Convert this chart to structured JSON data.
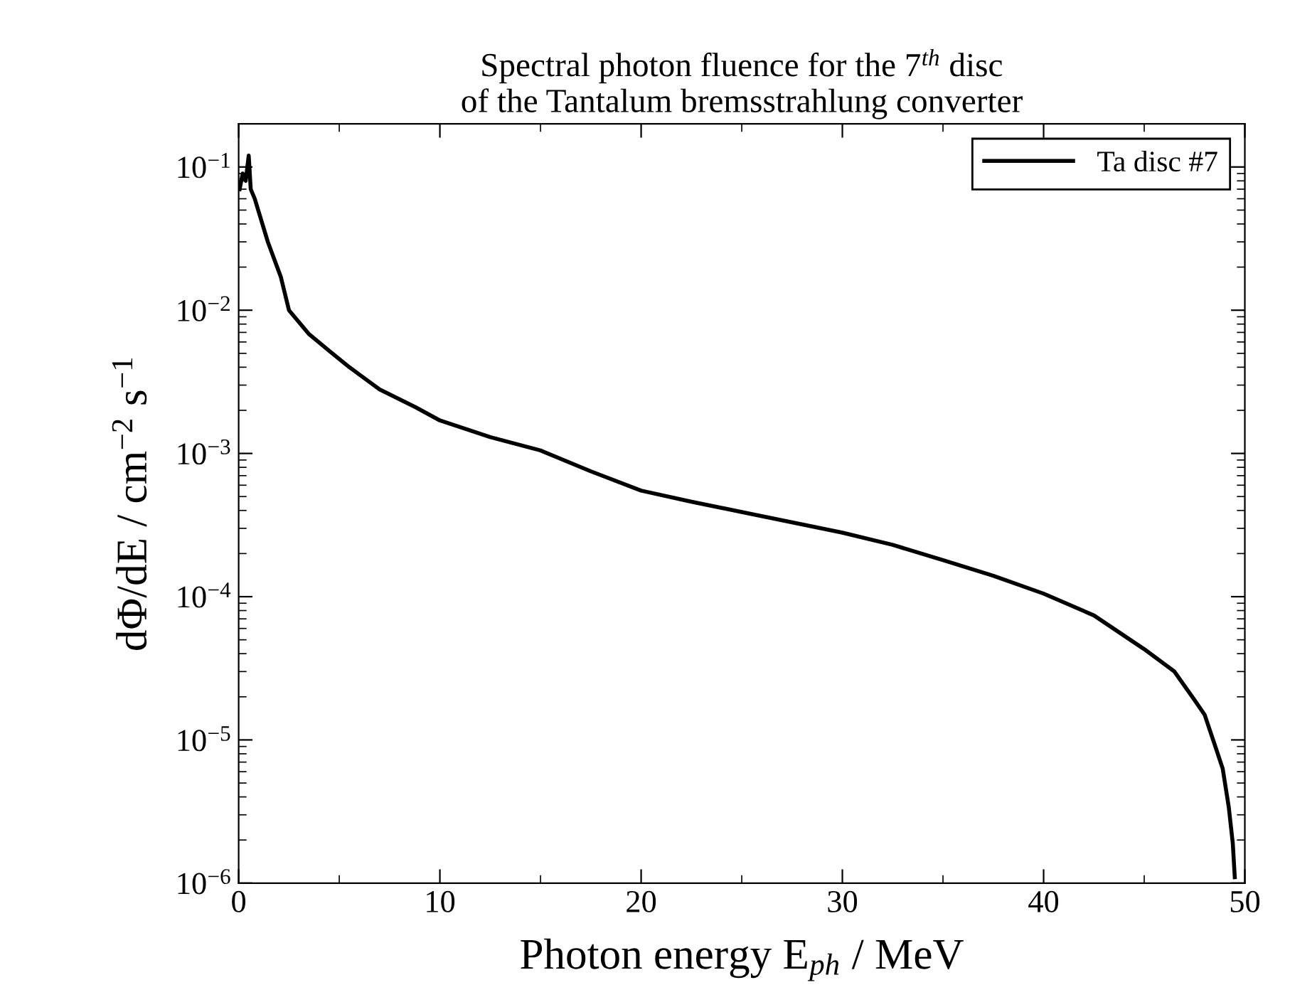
{
  "chart_data": {
    "type": "line",
    "title": "Spectral photon fluence for the 7$^{th}$ disc\nof the Tantalum bremsstrahlung converter",
    "xlabel": "Photon energy E$_{ph}$ / MeV",
    "ylabel": "dΦ/dE / cm$^{−2}$ s$^{−1}$",
    "series": [
      {
        "name": "Ta disc #7",
        "color": "#000000",
        "x": [
          0.05,
          0.2,
          0.35,
          0.5,
          0.6,
          0.8,
          1.45,
          2.1,
          2.5,
          3.5,
          4.5,
          5.5,
          7,
          8.8,
          10,
          12.5,
          15,
          17.5,
          20,
          22.5,
          25,
          27.5,
          30,
          32.5,
          35,
          37.5,
          40,
          42.5,
          45,
          46.5,
          47.5,
          48,
          48.5,
          48.9,
          49.2,
          49.4,
          49.5
        ],
        "values": [
          0.07,
          0.09,
          0.08,
          0.12,
          0.07,
          0.06,
          0.03,
          0.017,
          0.01,
          0.0068,
          0.0052,
          0.004,
          0.0028,
          0.0021,
          0.0017,
          0.0013,
          0.00105,
          0.00075,
          0.00055,
          0.00046,
          0.00039,
          0.00033,
          0.00028,
          0.00023,
          0.00018,
          0.00014,
          0.000105,
          7.4e-05,
          4.3e-05,
          3e-05,
          1.9e-05,
          1.5e-05,
          9.3e-06,
          6.3e-06,
          3.4e-06,
          1.9e-06,
          1.1e-06
        ]
      }
    ],
    "xlim": [
      0,
      50
    ],
    "xticks": [
      0,
      10,
      20,
      30,
      40,
      50
    ],
    "ylim": [
      1e-06,
      0.2
    ],
    "log": "y",
    "yticks": [
      {
        "value": 1e-06,
        "label": "10$^{−6}$"
      },
      {
        "value": 1e-05,
        "label": "10$^{−5}$"
      },
      {
        "value": 0.0001,
        "label": "10$^{−4}$"
      },
      {
        "value": 0.001,
        "label": "10$^{−3}$"
      },
      {
        "value": 0.01,
        "label": "10$^{−2}$"
      },
      {
        "value": 0.1,
        "label": "10$^{−1}$"
      }
    ],
    "legend": "top right",
    "grid": false,
    "line_style": "solid"
  }
}
